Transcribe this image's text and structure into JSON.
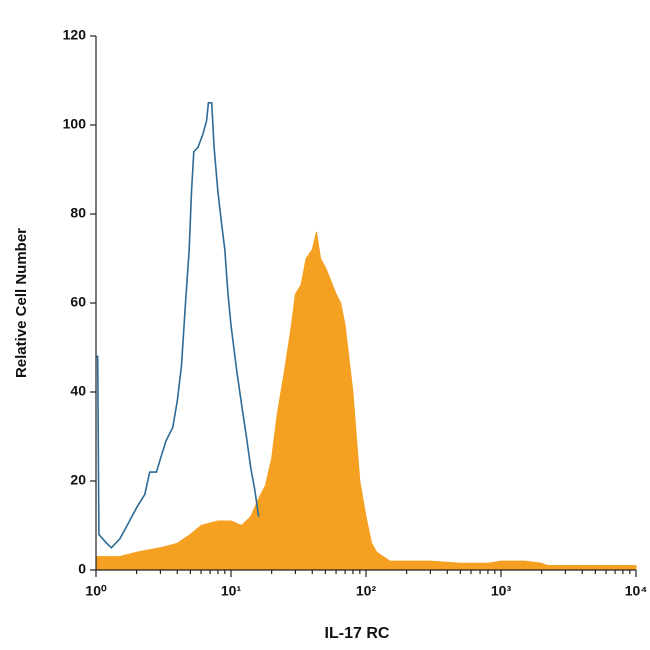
{
  "chart_data": {
    "type": "histogram-overlay",
    "x_label": "IL-17 RC",
    "y_label": "Relative Cell Number",
    "xscale": "log",
    "xlim": [
      1,
      10000
    ],
    "xticks": [
      {
        "value": 1,
        "label": "10⁰"
      },
      {
        "value": 10,
        "label": "10¹"
      },
      {
        "value": 100,
        "label": "10²"
      },
      {
        "value": 1000,
        "label": "10³"
      },
      {
        "value": 10000,
        "label": "10⁴"
      }
    ],
    "ylim": [
      0,
      120
    ],
    "yticks": [
      0,
      20,
      40,
      60,
      80,
      100,
      120
    ],
    "series": [
      {
        "color": "#f5a020",
        "fill": true,
        "x": [
          1,
          1.5,
          2,
          3,
          4,
          5,
          6,
          8,
          10,
          12,
          14,
          16,
          18,
          20,
          22,
          25,
          28,
          30,
          33,
          36,
          40,
          43,
          46,
          50,
          55,
          60,
          65,
          70,
          80,
          90,
          100,
          110,
          120,
          150,
          300,
          500,
          800,
          1000,
          1500,
          2000,
          2200,
          3000,
          5000,
          10000
        ],
        "values": [
          3,
          3,
          4,
          5,
          6,
          8,
          10,
          11,
          11,
          10,
          12,
          16,
          19,
          25,
          35,
          45,
          55,
          62,
          64,
          70,
          72,
          76,
          70,
          68,
          65,
          62,
          60,
          55,
          40,
          20,
          12,
          6,
          4,
          2,
          2,
          1.5,
          1.5,
          2,
          2,
          1.5,
          1,
          1,
          1,
          1
        ]
      },
      {
        "color": "#2e6a96",
        "fill": false,
        "x": [
          1,
          1.03,
          1.05,
          1.2,
          1.3,
          1.5,
          1.7,
          2,
          2.3,
          2.5,
          2.8,
          3,
          3.3,
          3.7,
          4,
          4.3,
          4.6,
          4.9,
          5.1,
          5.3,
          5.7,
          6.2,
          6.6,
          6.8,
          7.2,
          7.5,
          8,
          8.5,
          9,
          9.5,
          10,
          11,
          12,
          13,
          14,
          15,
          16
        ],
        "values": [
          48,
          48,
          8,
          6,
          5,
          7,
          10,
          14,
          17,
          22,
          22,
          25,
          29,
          32,
          38,
          46,
          60,
          72,
          85,
          94,
          95,
          98,
          101,
          105,
          105,
          95,
          85,
          78,
          72,
          62,
          55,
          45,
          37,
          30,
          23,
          18,
          12
        ]
      }
    ]
  }
}
